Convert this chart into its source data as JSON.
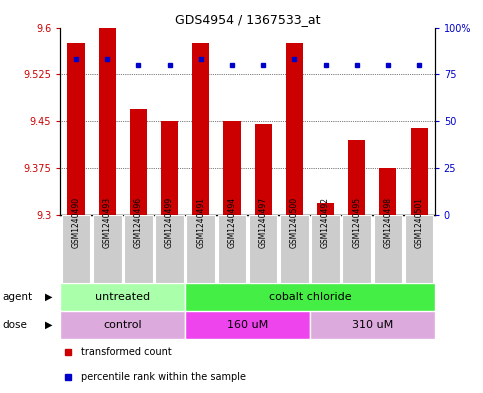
{
  "title": "GDS4954 / 1367533_at",
  "samples": [
    "GSM1240490",
    "GSM1240493",
    "GSM1240496",
    "GSM1240499",
    "GSM1240491",
    "GSM1240494",
    "GSM1240497",
    "GSM1240500",
    "GSM1240492",
    "GSM1240495",
    "GSM1240498",
    "GSM1240501"
  ],
  "bar_values": [
    9.575,
    9.6,
    9.47,
    9.45,
    9.575,
    9.45,
    9.445,
    9.575,
    9.32,
    9.42,
    9.375,
    9.44
  ],
  "percentile_values": [
    83,
    83,
    80,
    80,
    83,
    80,
    80,
    83,
    80,
    80,
    80,
    80
  ],
  "bar_color": "#cc0000",
  "percentile_color": "#0000cc",
  "ylim_left": [
    9.3,
    9.6
  ],
  "ylim_right": [
    0,
    100
  ],
  "yticks_left": [
    9.3,
    9.375,
    9.45,
    9.525,
    9.6
  ],
  "yticks_right": [
    0,
    25,
    50,
    75,
    100
  ],
  "ytick_labels_left": [
    "9.3",
    "9.375",
    "9.45",
    "9.525",
    "9.6"
  ],
  "ytick_labels_right": [
    "0",
    "25",
    "50",
    "75",
    "100%"
  ],
  "agent_groups": [
    {
      "label": "untreated",
      "start": 0,
      "end": 4,
      "color": "#aaffaa"
    },
    {
      "label": "cobalt chloride",
      "start": 4,
      "end": 12,
      "color": "#44ee44"
    }
  ],
  "dose_groups": [
    {
      "label": "control",
      "start": 0,
      "end": 4,
      "color": "#ddaadd"
    },
    {
      "label": "160 uM",
      "start": 4,
      "end": 8,
      "color": "#ee44ee"
    },
    {
      "label": "310 uM",
      "start": 8,
      "end": 12,
      "color": "#ddaadd"
    }
  ],
  "legend_items": [
    {
      "label": "transformed count",
      "color": "#cc0000"
    },
    {
      "label": "percentile rank within the sample",
      "color": "#0000cc"
    }
  ],
  "bar_width": 0.55,
  "ybase": 9.3,
  "xtick_bg": "#cccccc"
}
